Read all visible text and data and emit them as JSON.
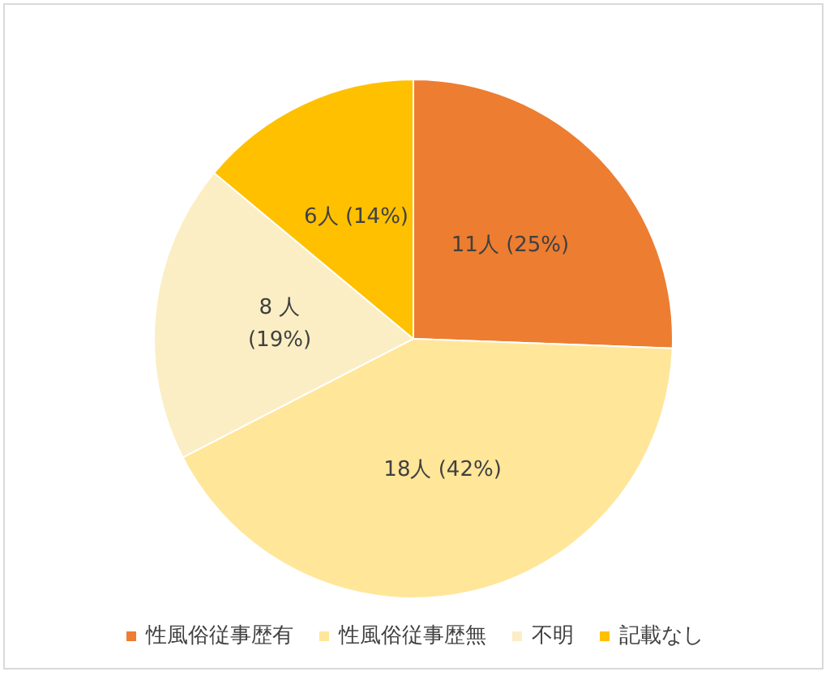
{
  "chart_data": {
    "type": "pie",
    "categories": [
      "性風俗従事歴有",
      "性風俗従事歴無",
      "不明",
      "記載なし"
    ],
    "values": [
      11,
      18,
      8,
      6
    ],
    "colors": [
      "#ed7d31",
      "#ffe699",
      "#fbeec4",
      "#ffc000"
    ],
    "value_labels": [
      "11人 (25%)",
      "18人 (42%)",
      "8 人\n(19%)",
      "6人 (14%)"
    ],
    "legend": "bottom"
  }
}
